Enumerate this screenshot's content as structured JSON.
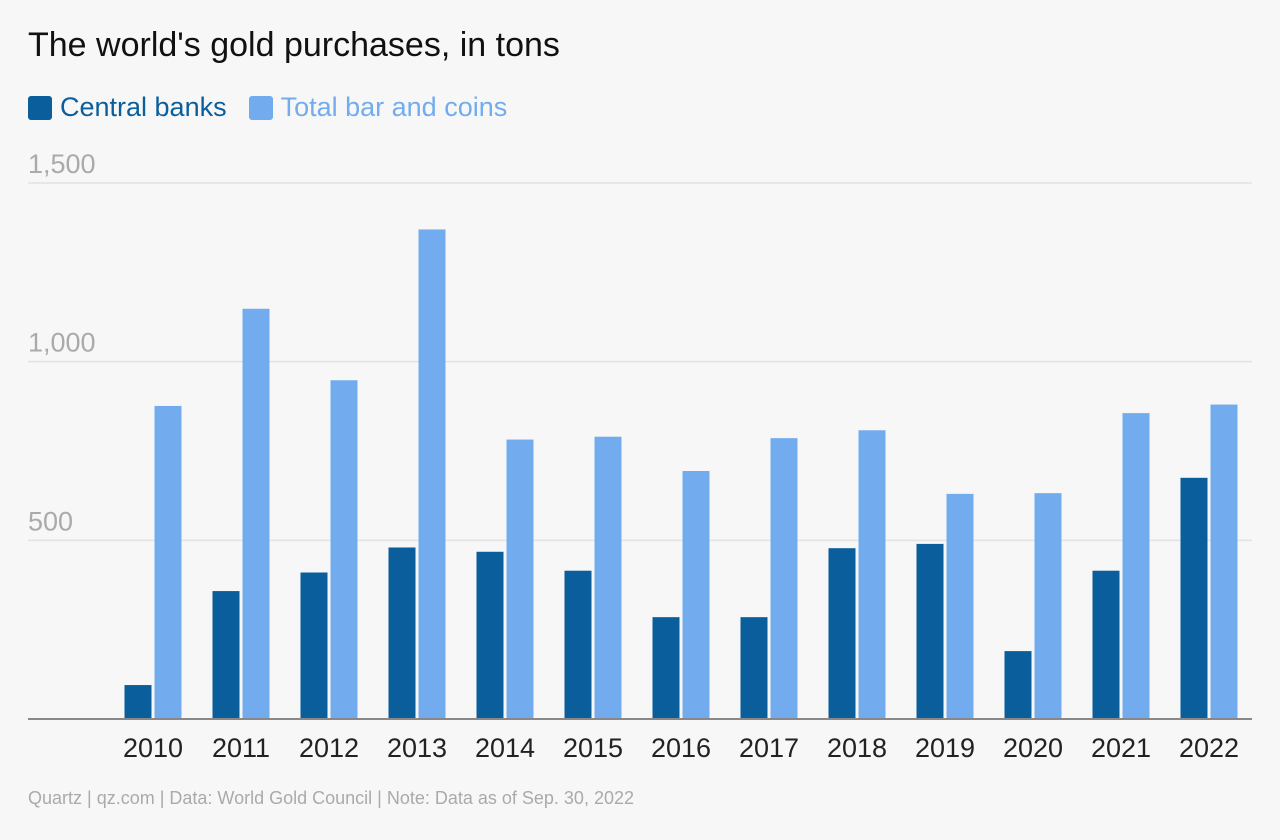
{
  "chart_data": {
    "type": "bar",
    "title": "The world's gold purchases, in tons",
    "categories": [
      "2010",
      "2011",
      "2012",
      "2013",
      "2014",
      "2015",
      "2016",
      "2017",
      "2018",
      "2019",
      "2020",
      "2021",
      "2022"
    ],
    "series": [
      {
        "name": "Central banks",
        "color": "#0a5e9c",
        "values": [
          95,
          358,
          410,
          480,
          468,
          415,
          285,
          285,
          478,
          490,
          190,
          415,
          675
        ]
      },
      {
        "name": "Total bar and coins",
        "color": "#72acee",
        "values": [
          876,
          1148,
          948,
          1370,
          782,
          790,
          694,
          786,
          808,
          630,
          632,
          856,
          880
        ]
      }
    ],
    "ylim": [
      0,
      1500
    ],
    "yticks": [
      {
        "value": 1500,
        "label": "1,500"
      },
      {
        "value": 1000,
        "label": "1,000"
      },
      {
        "value": 500,
        "label": "500"
      }
    ],
    "grid": true,
    "legend_position": "top-left",
    "xlabel": "",
    "ylabel": ""
  },
  "footer": {
    "source": "Quartz | qz.com | Data: World Gold Council | Note: Data as of Sep. 30, 2022"
  }
}
